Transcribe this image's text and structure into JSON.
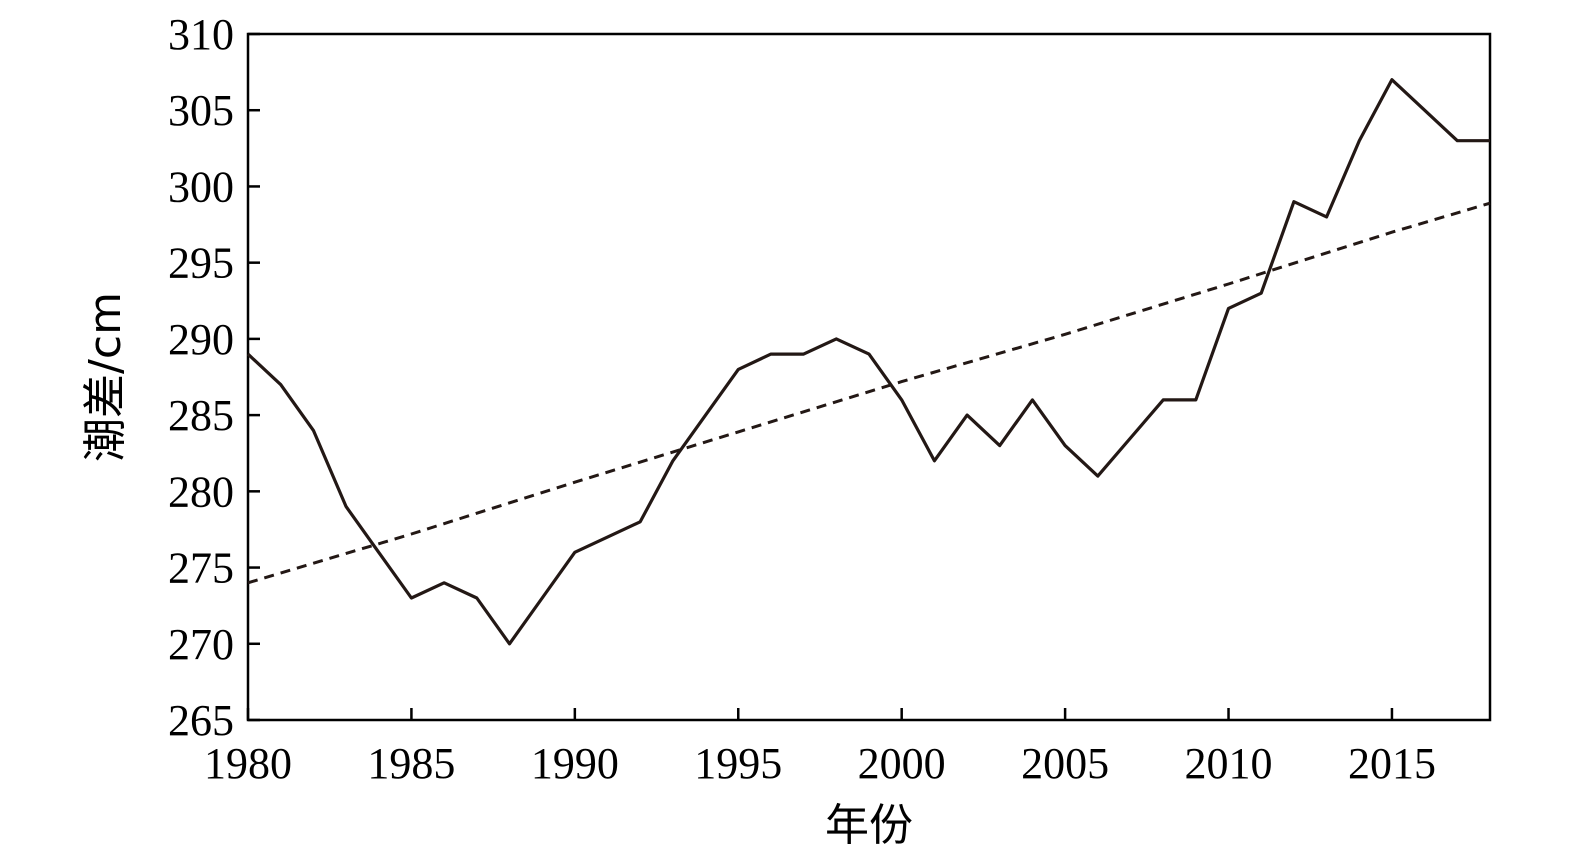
{
  "chart_data": {
    "type": "line",
    "title": "",
    "xlabel": "年份",
    "ylabel": "潮差/cm",
    "xlim": [
      1980,
      2018
    ],
    "ylim": [
      265,
      310
    ],
    "xticks": [
      "1980",
      "1985",
      "1990",
      "1995",
      "2000",
      "2005",
      "2010",
      "2015"
    ],
    "yticks": [
      "265",
      "270",
      "275",
      "280",
      "285",
      "290",
      "295",
      "300",
      "305",
      "310"
    ],
    "grid": false,
    "legend": "none",
    "series": [
      {
        "style": "solid",
        "color": "#231815",
        "x": [
          1980,
          1981,
          1982,
          1983,
          1984,
          1985,
          1986,
          1987,
          1988,
          1989,
          1990,
          1991,
          1992,
          1993,
          1994,
          1995,
          1996,
          1997,
          1998,
          1999,
          2000,
          2001,
          2002,
          2003,
          2004,
          2005,
          2006,
          2007,
          2008,
          2009,
          2010,
          2011,
          2012,
          2013,
          2014,
          2015,
          2016,
          2017,
          2018
        ],
        "y": [
          289,
          287,
          284,
          279,
          276,
          273,
          274,
          273,
          270,
          273,
          276,
          277,
          278,
          282,
          285,
          288,
          289,
          289,
          290,
          289,
          286,
          282,
          285,
          283,
          286,
          283,
          281,
          283.5,
          286,
          286,
          292,
          293,
          299,
          298,
          303,
          307,
          305,
          303,
          303
        ]
      },
      {
        "style": "dashed",
        "color": "#231815",
        "x": [
          1980,
          1985,
          1990,
          1995,
          2000,
          2005,
          2010,
          2015,
          2018
        ],
        "y": [
          274,
          277.2,
          280.6,
          283.9,
          287.2,
          290.3,
          293.6,
          297,
          298.9
        ]
      }
    ]
  }
}
